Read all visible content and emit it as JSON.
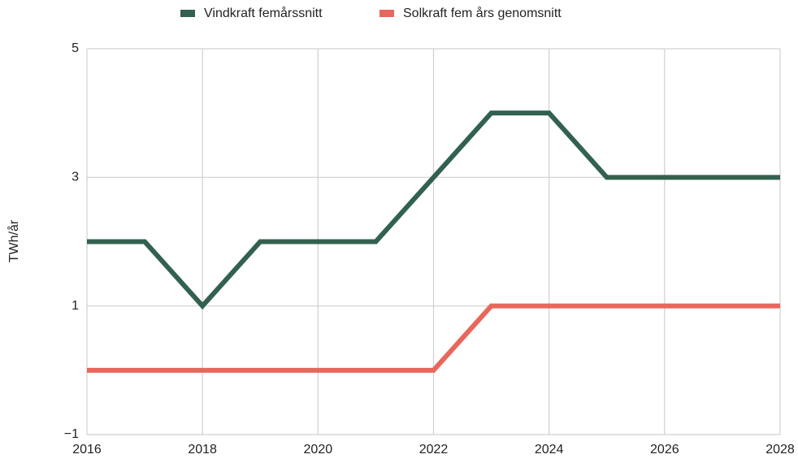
{
  "chart_data": {
    "type": "line",
    "x": [
      2016,
      2017,
      2018,
      2019,
      2020,
      2021,
      2022,
      2023,
      2024,
      2025,
      2026,
      2027,
      2028
    ],
    "series": [
      {
        "name": "Vindkraft femårssnitt",
        "color": "#33614f",
        "values": [
          2,
          2,
          1,
          2,
          2,
          2,
          3,
          4,
          4,
          3,
          3,
          3,
          3
        ]
      },
      {
        "name": "Solkraft fem års genomsnitt",
        "color": "#e8675b",
        "values": [
          0,
          0,
          0,
          0,
          0,
          0,
          0,
          1,
          1,
          1,
          1,
          1,
          1
        ]
      }
    ],
    "ylabel": "TWh/år",
    "xlim": [
      2016,
      2028
    ],
    "xticks": [
      2016,
      2018,
      2020,
      2022,
      2024,
      2026,
      2028
    ],
    "ylim": [
      -1,
      5
    ],
    "yticks": [
      {
        "value": -1,
        "label": "−1"
      },
      1,
      3,
      5
    ],
    "grid": true,
    "legend": "top"
  }
}
